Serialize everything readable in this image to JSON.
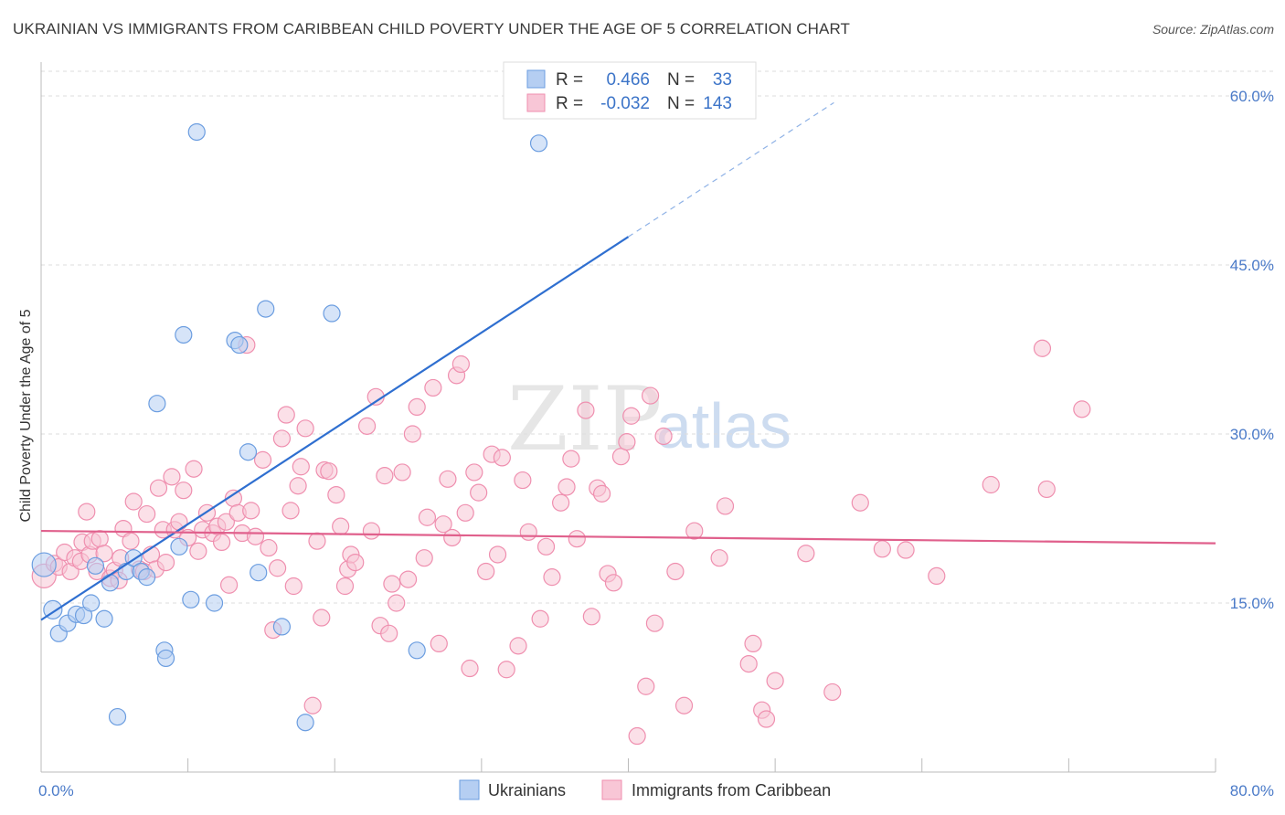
{
  "chart_data": {
    "type": "scatter",
    "title": "UKRAINIAN VS IMMIGRANTS FROM CARIBBEAN CHILD POVERTY UNDER THE AGE OF 5 CORRELATION CHART",
    "source": "Source: ZipAtlas.com",
    "ylabel": "Child Poverty Under the Age of 5",
    "xlim": [
      0,
      80
    ],
    "ylim": [
      0,
      63
    ],
    "x_tick_labels": [
      "0.0%",
      "80.0%"
    ],
    "y_ticks": [
      15,
      30,
      45,
      60
    ],
    "y_tick_labels": [
      "15.0%",
      "30.0%",
      "45.0%",
      "60.0%"
    ],
    "watermark": {
      "zip": "ZIP",
      "atlas": "atlas"
    },
    "legend": {
      "r_label": "R =",
      "n_label": "N =",
      "entries": [
        {
          "r": "0.466",
          "n": "33"
        },
        {
          "r": "-0.032",
          "n": "143"
        }
      ]
    },
    "series": [
      {
        "name": "Ukrainians",
        "color": "#6b9de0",
        "fill": "#b5cef2",
        "trend": {
          "x0": 0,
          "y0": 13.5,
          "x1": 40,
          "y1": 47.5,
          "dash_x1": 54,
          "dash_y1": 59.4
        },
        "points": [
          [
            0.2,
            18.4
          ],
          [
            0.8,
            14.4
          ],
          [
            1.2,
            12.3
          ],
          [
            1.8,
            13.2
          ],
          [
            2.4,
            14.0
          ],
          [
            2.9,
            13.9
          ],
          [
            3.4,
            15.0
          ],
          [
            3.7,
            18.3
          ],
          [
            4.3,
            13.6
          ],
          [
            4.7,
            16.8
          ],
          [
            5.2,
            4.9
          ],
          [
            5.8,
            17.8
          ],
          [
            6.3,
            19.0
          ],
          [
            6.8,
            17.8
          ],
          [
            7.2,
            17.3
          ],
          [
            7.9,
            32.7
          ],
          [
            8.4,
            10.8
          ],
          [
            8.5,
            10.1
          ],
          [
            9.4,
            20.0
          ],
          [
            9.7,
            38.8
          ],
          [
            10.2,
            15.3
          ],
          [
            10.6,
            56.8
          ],
          [
            11.8,
            15.0
          ],
          [
            13.2,
            38.3
          ],
          [
            13.5,
            37.9
          ],
          [
            14.1,
            28.4
          ],
          [
            14.8,
            17.7
          ],
          [
            15.3,
            41.1
          ],
          [
            16.4,
            12.9
          ],
          [
            18.0,
            4.4
          ],
          [
            19.8,
            40.7
          ],
          [
            25.6,
            10.8
          ],
          [
            33.9,
            55.8
          ]
        ]
      },
      {
        "name": "Immigrants from Caribbean",
        "color": "#ef8faf",
        "fill": "#f8c6d6",
        "trend": {
          "x0": 0,
          "y0": 21.4,
          "x1": 80,
          "y1": 20.3
        },
        "points": [
          [
            0.2,
            17.4
          ],
          [
            0.9,
            18.5
          ],
          [
            1.2,
            18.2
          ],
          [
            1.6,
            19.5
          ],
          [
            2.0,
            17.8
          ],
          [
            2.3,
            19.0
          ],
          [
            2.7,
            18.7
          ],
          [
            2.8,
            20.4
          ],
          [
            3.1,
            23.1
          ],
          [
            3.3,
            19.3
          ],
          [
            3.5,
            20.5
          ],
          [
            3.8,
            17.8
          ],
          [
            4.0,
            20.7
          ],
          [
            4.3,
            19.4
          ],
          [
            4.7,
            17.2
          ],
          [
            5.0,
            17.9
          ],
          [
            5.3,
            17.0
          ],
          [
            5.4,
            19.0
          ],
          [
            5.6,
            21.6
          ],
          [
            6.1,
            20.5
          ],
          [
            6.3,
            24.0
          ],
          [
            6.7,
            18.0
          ],
          [
            7.0,
            17.8
          ],
          [
            7.2,
            22.9
          ],
          [
            7.5,
            19.3
          ],
          [
            7.8,
            18.0
          ],
          [
            8.0,
            25.2
          ],
          [
            8.3,
            21.5
          ],
          [
            8.5,
            18.6
          ],
          [
            8.9,
            26.2
          ],
          [
            9.1,
            21.5
          ],
          [
            9.4,
            22.2
          ],
          [
            9.7,
            25.0
          ],
          [
            10.0,
            20.8
          ],
          [
            10.4,
            26.9
          ],
          [
            10.7,
            19.6
          ],
          [
            11.0,
            21.5
          ],
          [
            11.3,
            23.0
          ],
          [
            11.7,
            21.2
          ],
          [
            12.0,
            21.8
          ],
          [
            12.3,
            20.4
          ],
          [
            12.6,
            22.2
          ],
          [
            12.8,
            16.6
          ],
          [
            13.1,
            24.3
          ],
          [
            13.4,
            23.0
          ],
          [
            13.7,
            21.2
          ],
          [
            14.0,
            37.9
          ],
          [
            14.3,
            23.2
          ],
          [
            14.6,
            20.9
          ],
          [
            15.1,
            27.7
          ],
          [
            15.5,
            19.9
          ],
          [
            15.8,
            12.6
          ],
          [
            16.1,
            18.1
          ],
          [
            16.4,
            29.6
          ],
          [
            16.7,
            31.7
          ],
          [
            17.0,
            23.2
          ],
          [
            17.2,
            16.5
          ],
          [
            17.5,
            25.4
          ],
          [
            17.7,
            27.1
          ],
          [
            18.0,
            30.5
          ],
          [
            18.5,
            5.9
          ],
          [
            18.8,
            20.5
          ],
          [
            19.1,
            13.7
          ],
          [
            19.3,
            26.8
          ],
          [
            19.6,
            26.7
          ],
          [
            20.1,
            24.6
          ],
          [
            20.4,
            21.8
          ],
          [
            20.7,
            16.5
          ],
          [
            20.9,
            18.0
          ],
          [
            21.1,
            19.3
          ],
          [
            21.4,
            18.6
          ],
          [
            22.2,
            30.7
          ],
          [
            22.5,
            21.4
          ],
          [
            22.8,
            33.3
          ],
          [
            23.1,
            13.0
          ],
          [
            23.4,
            26.3
          ],
          [
            23.7,
            12.3
          ],
          [
            23.9,
            16.7
          ],
          [
            24.2,
            15.0
          ],
          [
            24.6,
            26.6
          ],
          [
            25.0,
            17.1
          ],
          [
            25.3,
            30.0
          ],
          [
            25.6,
            32.4
          ],
          [
            26.1,
            19.0
          ],
          [
            26.3,
            22.6
          ],
          [
            26.7,
            34.1
          ],
          [
            27.1,
            11.4
          ],
          [
            27.4,
            22.0
          ],
          [
            27.7,
            26.0
          ],
          [
            28.0,
            20.8
          ],
          [
            28.3,
            35.2
          ],
          [
            28.6,
            36.2
          ],
          [
            28.9,
            23.0
          ],
          [
            29.2,
            9.2
          ],
          [
            29.5,
            26.6
          ],
          [
            29.8,
            24.8
          ],
          [
            30.3,
            17.8
          ],
          [
            30.7,
            28.2
          ],
          [
            31.1,
            19.3
          ],
          [
            31.4,
            27.9
          ],
          [
            31.7,
            9.1
          ],
          [
            32.5,
            11.2
          ],
          [
            32.8,
            25.9
          ],
          [
            33.2,
            21.3
          ],
          [
            34.0,
            13.6
          ],
          [
            34.4,
            20.0
          ],
          [
            34.8,
            17.3
          ],
          [
            35.4,
            23.9
          ],
          [
            35.8,
            25.3
          ],
          [
            36.1,
            27.8
          ],
          [
            36.5,
            20.7
          ],
          [
            37.1,
            32.1
          ],
          [
            37.5,
            13.8
          ],
          [
            37.9,
            25.2
          ],
          [
            38.2,
            24.7
          ],
          [
            38.6,
            17.6
          ],
          [
            39.0,
            16.8
          ],
          [
            39.5,
            28.0
          ],
          [
            39.9,
            29.3
          ],
          [
            40.2,
            31.6
          ],
          [
            40.6,
            3.2
          ],
          [
            41.2,
            7.6
          ],
          [
            41.5,
            33.4
          ],
          [
            41.8,
            13.2
          ],
          [
            42.4,
            29.8
          ],
          [
            43.2,
            17.8
          ],
          [
            43.8,
            5.9
          ],
          [
            44.5,
            21.4
          ],
          [
            46.2,
            19.0
          ],
          [
            46.6,
            23.6
          ],
          [
            48.2,
            9.6
          ],
          [
            48.5,
            11.4
          ],
          [
            49.1,
            5.5
          ],
          [
            49.4,
            4.7
          ],
          [
            50.0,
            8.1
          ],
          [
            52.1,
            19.4
          ],
          [
            53.9,
            7.1
          ],
          [
            55.8,
            23.9
          ],
          [
            57.3,
            19.8
          ],
          [
            58.9,
            19.7
          ],
          [
            61.0,
            17.4
          ],
          [
            64.7,
            25.5
          ],
          [
            68.2,
            37.6
          ],
          [
            68.5,
            25.1
          ],
          [
            70.9,
            32.2
          ]
        ]
      }
    ],
    "bottom_legend": [
      "Ukrainians",
      "Immigrants from Caribbean"
    ]
  }
}
